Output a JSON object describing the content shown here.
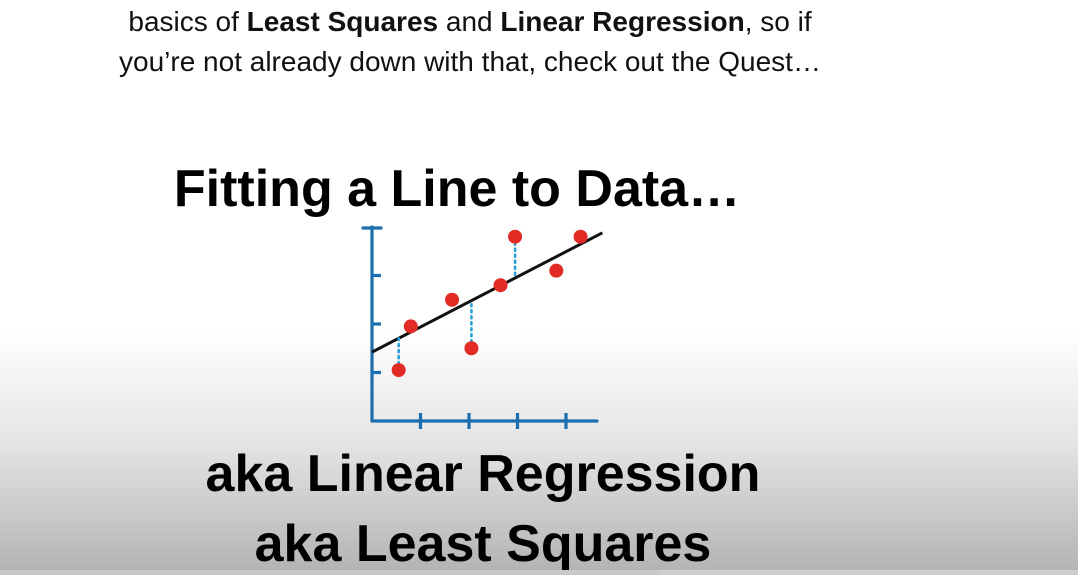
{
  "intro": {
    "line1_a": "basics of ",
    "line1_b": "Least Squares",
    "line1_c": " and ",
    "line1_d": "Linear Regression",
    "line1_e": ", so if",
    "line2": "you’re not already down with that, check out the Quest…"
  },
  "slide": {
    "title": "Fitting a Line to Data…",
    "subtitle1": "aka Linear Regression",
    "subtitle2": "aka Least Squares"
  },
  "chart_data": {
    "type": "scatter",
    "title": "",
    "xlabel": "",
    "ylabel": "",
    "xlim": [
      0,
      4.5
    ],
    "ylim": [
      0,
      4
    ],
    "points": [
      {
        "x": 0.55,
        "y": 1.05
      },
      {
        "x": 0.8,
        "y": 1.95
      },
      {
        "x": 1.65,
        "y": 2.5
      },
      {
        "x": 2.05,
        "y": 1.5
      },
      {
        "x": 2.65,
        "y": 2.8
      },
      {
        "x": 2.95,
        "y": 3.8
      },
      {
        "x": 3.8,
        "y": 3.1
      },
      {
        "x": 4.3,
        "y": 3.8
      }
    ],
    "fit_line": {
      "x0": 0.0,
      "y0": 1.42,
      "x1": 4.75,
      "y1": 3.88
    },
    "residual_points": [
      0,
      3,
      5
    ],
    "colors": {
      "axis": "#1c6fae",
      "point": "#e22b24",
      "line": "#111111",
      "residual": "#2a9fd6"
    },
    "grid": false
  },
  "player": {
    "progress": 0.61
  }
}
